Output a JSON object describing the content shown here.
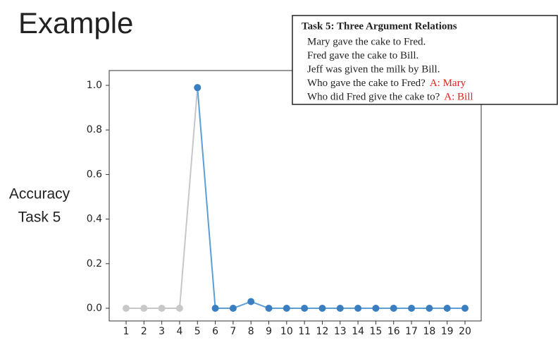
{
  "title": "Example",
  "chart_data": {
    "type": "line",
    "ylabel": [
      "Accuracy",
      "Task 5"
    ],
    "categories": [
      "1",
      "2",
      "3",
      "4",
      "5",
      "6",
      "7",
      "8",
      "9",
      "10",
      "11",
      "12",
      "13",
      "14",
      "15",
      "16",
      "17",
      "18",
      "19",
      "20"
    ],
    "series": [
      {
        "color": "#c8c8c8",
        "values": [
          0,
          0,
          0,
          0,
          0.99,
          null,
          null,
          null,
          null,
          null,
          null,
          null,
          null,
          null,
          null,
          null,
          null,
          null,
          null,
          null
        ]
      },
      {
        "color": "#3a7ebf",
        "line_color": "#5b9fd6",
        "values": [
          null,
          null,
          null,
          null,
          0.99,
          0,
          0,
          0.03,
          0,
          0,
          0,
          0,
          0,
          0,
          0,
          0,
          0,
          0,
          0,
          0
        ]
      }
    ],
    "ylim": [
      -0.05,
      1.05
    ],
    "yticks": [
      {
        "value": 0,
        "label": "0.0"
      },
      0.2,
      0.4,
      0.6,
      0.8,
      {
        "value": 1,
        "label": "1.0"
      }
    ],
    "grid": false,
    "annotation": {
      "title": "Task 5: Three Argument Relations",
      "lines": [
        {
          "text": "Mary gave the cake to Fred."
        },
        {
          "text": "Fred gave the cake to Bill."
        },
        {
          "text": "Jeff was given the milk by Bill."
        },
        {
          "text": "Who gave the cake to Fred?",
          "answer": "A: Mary"
        },
        {
          "text": "Who did Fred give the cake to?",
          "answer": "A: Bill"
        }
      ]
    }
  }
}
